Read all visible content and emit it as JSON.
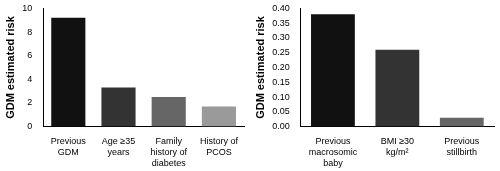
{
  "chart_data": [
    {
      "type": "bar",
      "y_label": "GDM estimated risk",
      "categories": [
        "Previous GDM",
        "Age ≥35 years",
        "Family history of diabetes",
        "History of PCOS"
      ],
      "values": [
        9.2,
        3.3,
        2.5,
        1.7
      ],
      "colors": [
        "#111111",
        "#333333",
        "#666666",
        "#9a9a9a"
      ],
      "ylim": [
        0,
        10
      ],
      "yticks": [
        0,
        2,
        4,
        6,
        8,
        10
      ],
      "grid": false
    },
    {
      "type": "bar",
      "y_label": "GDM estimated risk",
      "categories": [
        "Previous macrosomic baby",
        "BMI ≥30 kg/m²",
        "Previous stillbirth"
      ],
      "values": [
        0.38,
        0.26,
        0.03
      ],
      "colors": [
        "#111111",
        "#333333",
        "#666666"
      ],
      "ylim": [
        0,
        0.4
      ],
      "yticks": [
        {
          "value": 0,
          "label": "0.00"
        },
        {
          "value": 0.05,
          "label": "0.05"
        },
        {
          "value": 0.1,
          "label": "0.10"
        },
        {
          "value": 0.15,
          "label": "0.15"
        },
        {
          "value": 0.2,
          "label": "0.20"
        },
        {
          "value": 0.25,
          "label": "0.25"
        },
        {
          "value": 0.3,
          "label": "0.30"
        },
        {
          "value": 0.35,
          "label": "0.35"
        },
        {
          "value": 0.4,
          "label": "0.40"
        }
      ],
      "grid": false
    }
  ]
}
